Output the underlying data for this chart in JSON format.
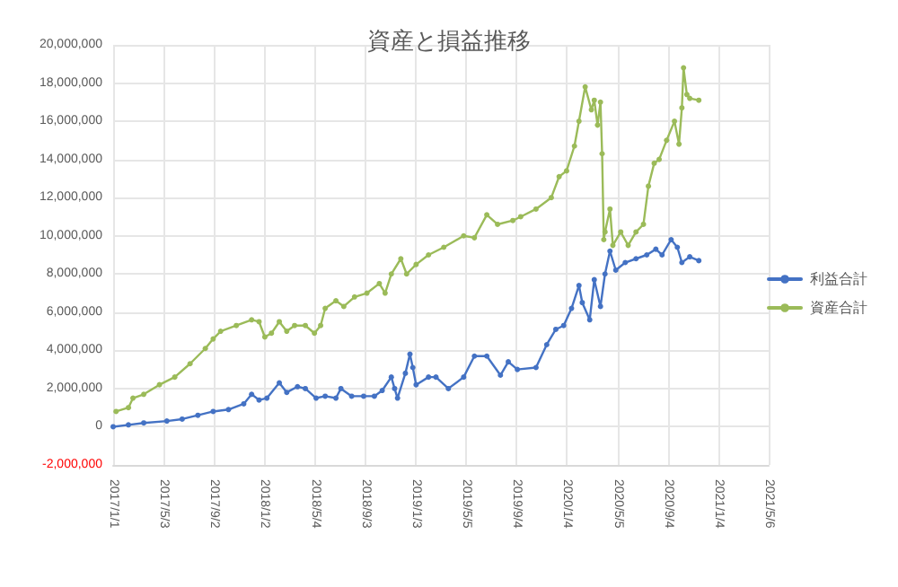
{
  "chart_data": {
    "type": "line",
    "title": "資産と損益推移",
    "legend": "right",
    "grid": true,
    "marker": "circle",
    "line_style": "solid",
    "xlim": [
      "2017-01-01",
      "2021-05-06"
    ],
    "xticks": [
      {
        "value": "2017-01-01",
        "label": "2017/1/1"
      },
      {
        "value": "2017-05-03",
        "label": "2017/5/3"
      },
      {
        "value": "2017-09-02",
        "label": "2017/9/2"
      },
      {
        "value": "2018-01-02",
        "label": "2018/1/2"
      },
      {
        "value": "2018-05-04",
        "label": "2018/5/4"
      },
      {
        "value": "2018-09-03",
        "label": "2018/9/3"
      },
      {
        "value": "2019-01-03",
        "label": "2019/1/3"
      },
      {
        "value": "2019-05-05",
        "label": "2019/5/5"
      },
      {
        "value": "2019-09-04",
        "label": "2019/9/4"
      },
      {
        "value": "2020-01-04",
        "label": "2020/1/4"
      },
      {
        "value": "2020-05-05",
        "label": "2020/5/5"
      },
      {
        "value": "2020-09-04",
        "label": "2020/9/4"
      },
      {
        "value": "2021-01-04",
        "label": "2021/1/4"
      },
      {
        "value": "2021-05-06",
        "label": "2021/5/6"
      }
    ],
    "ylim": [
      -2000000,
      20000000
    ],
    "yticks": [
      {
        "value": -2000000,
        "label": "-2,000,000"
      },
      {
        "value": 0,
        "label": "0"
      },
      {
        "value": 2000000,
        "label": "2,000,000"
      },
      {
        "value": 4000000,
        "label": "4,000,000"
      },
      {
        "value": 6000000,
        "label": "6,000,000"
      },
      {
        "value": 8000000,
        "label": "8,000,000"
      },
      {
        "value": 10000000,
        "label": "10,000,000"
      },
      {
        "value": 12000000,
        "label": "12,000,000"
      },
      {
        "value": 14000000,
        "label": "14,000,000"
      },
      {
        "value": 16000000,
        "label": "16,000,000"
      },
      {
        "value": 18000000,
        "label": "18,000,000"
      },
      {
        "value": 20000000,
        "label": "20,000,000"
      }
    ],
    "series": [
      {
        "name": "利益合計",
        "color": "#4472c4",
        "x": [
          "2017-01-01",
          "2017-02-07",
          "2017-03-16",
          "2017-05-11",
          "2017-06-17",
          "2017-07-25",
          "2017-08-31",
          "2017-10-07",
          "2017-11-13",
          "2017-12-02",
          "2017-12-20",
          "2018-01-08",
          "2018-02-07",
          "2018-02-25",
          "2018-03-23",
          "2018-04-11",
          "2018-05-07",
          "2018-05-29",
          "2018-06-24",
          "2018-07-06",
          "2018-08-01",
          "2018-08-30",
          "2018-09-25",
          "2018-10-14",
          "2018-11-05",
          "2018-11-13",
          "2018-11-20",
          "2018-12-09",
          "2018-12-20",
          "2018-12-27",
          "2019-01-04",
          "2019-02-03",
          "2019-02-21",
          "2019-03-23",
          "2019-04-29",
          "2019-05-25",
          "2019-06-24",
          "2019-07-27",
          "2019-08-15",
          "2019-09-06",
          "2019-10-21",
          "2019-11-16",
          "2019-12-08",
          "2019-12-27",
          "2020-01-15",
          "2020-02-02",
          "2020-02-10",
          "2020-02-28",
          "2020-03-10",
          "2020-03-25",
          "2020-04-05",
          "2020-04-17",
          "2020-05-01",
          "2020-05-24",
          "2020-06-19",
          "2020-07-15",
          "2020-08-06",
          "2020-08-21",
          "2020-09-12",
          "2020-09-27",
          "2020-10-08",
          "2020-10-27",
          "2020-11-18"
        ],
        "values": [
          0,
          100000,
          200000,
          300000,
          400000,
          600000,
          800000,
          900000,
          1200000,
          1700000,
          1400000,
          1500000,
          2300000,
          1800000,
          2100000,
          2000000,
          1500000,
          1600000,
          1500000,
          2000000,
          1600000,
          1600000,
          1600000,
          1900000,
          2600000,
          2000000,
          1500000,
          2800000,
          3800000,
          3100000,
          2200000,
          2600000,
          2600000,
          2000000,
          2600000,
          3700000,
          3700000,
          2700000,
          3400000,
          3000000,
          3100000,
          4300000,
          5100000,
          5300000,
          6200000,
          7400000,
          6500000,
          5600000,
          7700000,
          6300000,
          8000000,
          9200000,
          8200000,
          8600000,
          8800000,
          9000000,
          9300000,
          9000000,
          9800000,
          9400000,
          8600000,
          8900000,
          8700000
        ]
      },
      {
        "name": "資産合計",
        "color": "#9bbb59",
        "x": [
          "2017-01-08",
          "2017-02-07",
          "2017-02-18",
          "2017-03-16",
          "2017-04-23",
          "2017-05-30",
          "2017-07-06",
          "2017-08-12",
          "2017-08-31",
          "2017-09-18",
          "2017-10-26",
          "2017-12-02",
          "2017-12-20",
          "2018-01-03",
          "2018-01-19",
          "2018-02-07",
          "2018-02-25",
          "2018-03-16",
          "2018-04-11",
          "2018-05-03",
          "2018-05-18",
          "2018-05-29",
          "2018-06-24",
          "2018-07-13",
          "2018-08-08",
          "2018-09-07",
          "2018-10-07",
          "2018-10-21",
          "2018-11-05",
          "2018-11-28",
          "2018-12-12",
          "2019-01-04",
          "2019-02-03",
          "2019-03-12",
          "2019-04-29",
          "2019-05-25",
          "2019-06-24",
          "2019-07-20",
          "2019-08-26",
          "2019-09-14",
          "2019-10-21",
          "2019-11-27",
          "2019-12-16",
          "2020-01-03",
          "2020-01-22",
          "2020-02-02",
          "2020-02-17",
          "2020-03-03",
          "2020-03-10",
          "2020-03-18",
          "2020-03-25",
          "2020-03-29",
          "2020-04-02",
          "2020-04-05",
          "2020-04-17",
          "2020-04-24",
          "2020-05-13",
          "2020-05-31",
          "2020-06-19",
          "2020-07-07",
          "2020-07-19",
          "2020-08-02",
          "2020-08-14",
          "2020-09-01",
          "2020-09-20",
          "2020-10-01",
          "2020-10-08",
          "2020-10-12",
          "2020-10-20",
          "2020-10-27",
          "2020-11-18"
        ],
        "values": [
          800000,
          1000000,
          1500000,
          1700000,
          2200000,
          2600000,
          3300000,
          4100000,
          4600000,
          5000000,
          5300000,
          5600000,
          5500000,
          4700000,
          4900000,
          5500000,
          5000000,
          5300000,
          5300000,
          4900000,
          5300000,
          6200000,
          6600000,
          6300000,
          6800000,
          7000000,
          7500000,
          7000000,
          8000000,
          8800000,
          8000000,
          8500000,
          9000000,
          9400000,
          10000000,
          9900000,
          11100000,
          10600000,
          10800000,
          11000000,
          11400000,
          12000000,
          13100000,
          13400000,
          14700000,
          16000000,
          17800000,
          16600000,
          17100000,
          15800000,
          17000000,
          14300000,
          9800000,
          10200000,
          11400000,
          9500000,
          10200000,
          9500000,
          10200000,
          10600000,
          12600000,
          13800000,
          14000000,
          15000000,
          16000000,
          14800000,
          16700000,
          18800000,
          17400000,
          17200000,
          17100000
        ]
      }
    ]
  }
}
